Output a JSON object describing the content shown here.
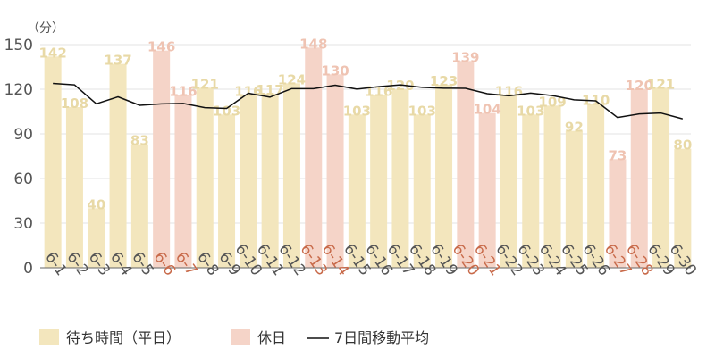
{
  "chart_data": {
    "type": "bar",
    "y_unit_label": "（分）",
    "ylim": [
      0,
      150
    ],
    "yticks": [
      0,
      30,
      60,
      90,
      120,
      150
    ],
    "categories": [
      "6-1",
      "6-2",
      "6-3",
      "6-4",
      "6-5",
      "6-6",
      "6-7",
      "6-8",
      "6-9",
      "6-10",
      "6-11",
      "6-12",
      "6-13",
      "6-14",
      "6-15",
      "6-16",
      "6-17",
      "6-18",
      "6-19",
      "6-20",
      "6-21",
      "6-22",
      "6-23",
      "6-24",
      "6-25",
      "6-26",
      "6-27",
      "6-28",
      "6-29",
      "6-30"
    ],
    "values": [
      142,
      108,
      40,
      137,
      83,
      146,
      116,
      121,
      103,
      116,
      117,
      124,
      148,
      130,
      103,
      116,
      120,
      103,
      123,
      139,
      104,
      116,
      103,
      109,
      92,
      110,
      73,
      120,
      121,
      80
    ],
    "holidays": [
      false,
      false,
      false,
      false,
      false,
      true,
      true,
      false,
      false,
      false,
      false,
      false,
      true,
      true,
      false,
      false,
      false,
      false,
      false,
      true,
      true,
      false,
      false,
      false,
      false,
      false,
      true,
      true,
      false,
      false
    ],
    "moving_average": [
      123.9,
      122.9,
      110.2,
      114.9,
      109.2,
      110.2,
      110.5,
      107.6,
      107.1,
      117.3,
      114.7,
      120.4,
      120.4,
      122.7,
      120.1,
      121.7,
      122.9,
      121.3,
      120.7,
      120.6,
      117.0,
      115.6,
      117.4,
      115.7,
      112.9,
      112.2,
      101.0,
      103.4,
      104.0,
      100.1
    ],
    "series": [
      {
        "name": "待ち時間（平日）",
        "color": "#f3e6bd"
      },
      {
        "name": "休日",
        "color": "#f5d4c8"
      },
      {
        "name": "7日間移動平均",
        "color": "#111111"
      }
    ],
    "label_colors": {
      "weekday": "#e8d9a6",
      "holiday": "#efc3b2"
    },
    "tick_colors": {
      "weekday": "#555555",
      "holiday": "#c86a4a"
    },
    "grid": true
  }
}
